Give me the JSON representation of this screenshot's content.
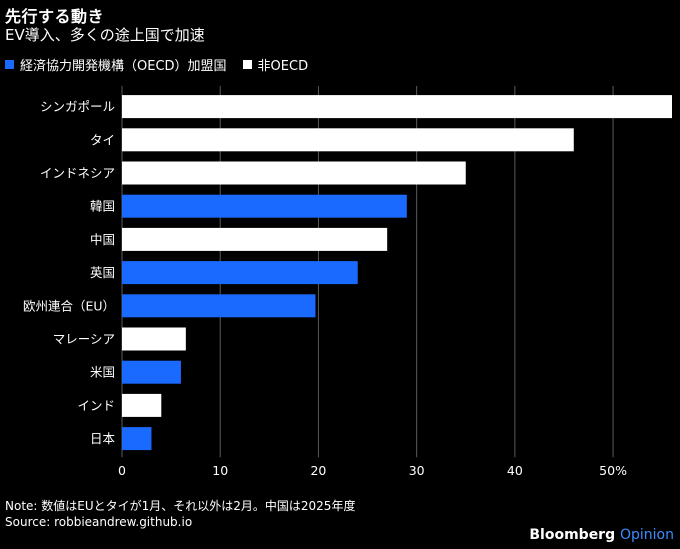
{
  "header": {
    "title": "先行する動き",
    "subtitle": "EV導入、多くの途上国で加速"
  },
  "legend": [
    {
      "label": "経済協力開発機構（OECD）加盟国",
      "color": "#1a6aff"
    },
    {
      "label": "非OECD",
      "color": "#ffffff"
    }
  ],
  "footer": {
    "note": "Note: 数値はEUとタイが1月、それ以外は2月。中国は2025年度",
    "source": "Source: robbieandrew.github.io",
    "brand_main": "Bloomberg",
    "brand_sub": "Opinion"
  },
  "chart_data": {
    "type": "bar",
    "orientation": "horizontal",
    "title": "先行する動き",
    "subtitle": "EV導入、多くの途上国で加速",
    "xlim": [
      0,
      56
    ],
    "ticks": [
      0,
      10,
      20,
      30,
      40,
      50
    ],
    "tick_labels": [
      "0",
      "10",
      "20",
      "30",
      "40",
      "50%"
    ],
    "grid": "vertical",
    "categories": [
      "シンガポール",
      "タイ",
      "インドネシア",
      "韓国",
      "中国",
      "英国",
      "欧州連合（EU）",
      "マレーシア",
      "米国",
      "インド",
      "日本"
    ],
    "values": [
      56,
      46,
      35,
      29,
      27,
      24,
      19.7,
      6.5,
      6,
      4,
      3
    ],
    "groups": [
      "非OECD",
      "非OECD",
      "非OECD",
      "OECD",
      "非OECD",
      "OECD",
      "OECD",
      "非OECD",
      "OECD",
      "非OECD",
      "OECD"
    ],
    "group_colors": {
      "OECD": "#1a6aff",
      "非OECD": "#ffffff"
    }
  }
}
